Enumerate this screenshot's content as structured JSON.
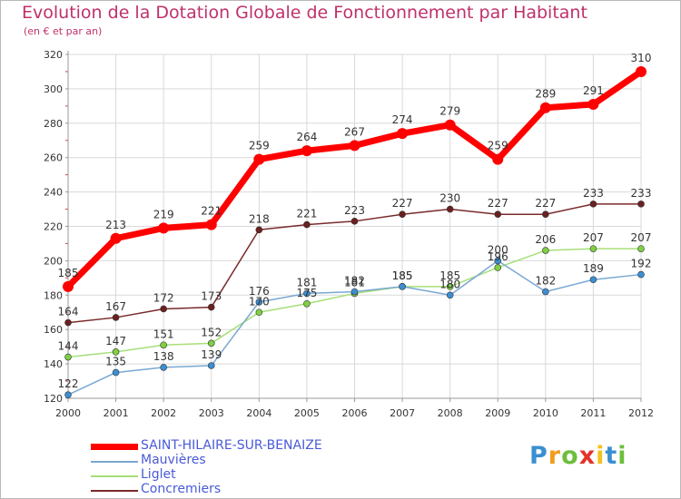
{
  "title": "Evolution de la Dotation Globale de Fonctionnement par Habitant",
  "subtitle": "(en € et par an)",
  "logo_text": "Proxiti",
  "colors": {
    "title": "#c0306a",
    "legend_text": "#4a5ad8",
    "grid": "#d9d9d9",
    "axis": "#999999",
    "tick_label": "#333333",
    "logo": [
      "#3a8fd0",
      "#f29c1f",
      "#6cbf3c",
      "#e2342b",
      "#f2c21f",
      "#3a8fd0",
      "#6cbf3c"
    ]
  },
  "chart_data": {
    "type": "line",
    "title": "Evolution de la Dotation Globale de Fonctionnement par Habitant",
    "subtitle": "(en € et par an)",
    "xlabel": "",
    "ylabel": "",
    "x": [
      "2000",
      "2001",
      "2002",
      "2003",
      "2004",
      "2005",
      "2006",
      "2007",
      "2008",
      "2009",
      "2010",
      "2011",
      "2012"
    ],
    "ylim": [
      120,
      320
    ],
    "yticks": [
      120,
      140,
      160,
      180,
      200,
      220,
      240,
      260,
      280,
      300,
      320
    ],
    "grid": true,
    "legend_position": "bottom-left",
    "series": [
      {
        "name": "SAINT-HILAIRE-SUR-BENAIZE",
        "color": "#ff0000",
        "marker": "#ff0000",
        "line_width": 7,
        "marker_r": 6,
        "values": [
          185,
          213,
          219,
          221,
          259,
          264,
          267,
          274,
          279,
          259,
          289,
          291,
          310
        ]
      },
      {
        "name": "Mauvières",
        "color": "#79a8d4",
        "marker": "#3c8ed1",
        "line_width": 1.5,
        "marker_r": 3.5,
        "values": [
          122,
          135,
          138,
          139,
          176,
          181,
          182,
          185,
          180,
          200,
          182,
          189,
          192
        ]
      },
      {
        "name": "Liglet",
        "color": "#a6df78",
        "marker": "#7fcf45",
        "line_width": 1.5,
        "marker_r": 3.5,
        "values": [
          144,
          147,
          151,
          152,
          170,
          175,
          181,
          185,
          185,
          196,
          206,
          207,
          207
        ]
      },
      {
        "name": "Concremiers",
        "color": "#7a2a2a",
        "marker": "#6b2020",
        "line_width": 1.5,
        "marker_r": 3.5,
        "values": [
          164,
          167,
          172,
          173,
          218,
          221,
          223,
          227,
          230,
          227,
          227,
          233,
          233
        ]
      }
    ]
  }
}
